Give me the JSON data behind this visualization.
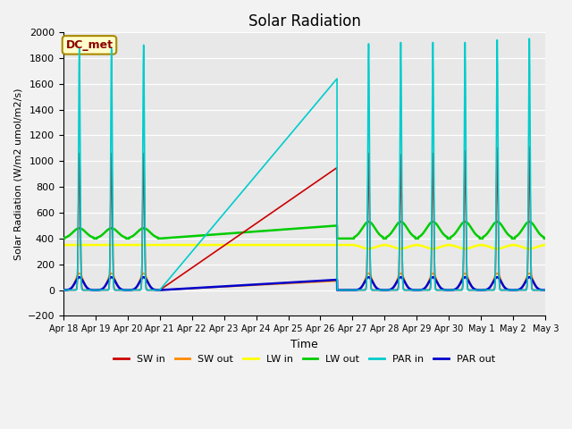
{
  "title": "Solar Radiation",
  "xlabel": "Time",
  "ylabel": "Solar Radiation (W/m2 umol/m2/s)",
  "ylim": [
    -200,
    2000
  ],
  "xlim_days": [
    0,
    15
  ],
  "x_tick_labels": [
    "Apr 18",
    "Apr 19",
    "Apr 20",
    "Apr 21",
    "Apr 22",
    "Apr 23",
    "Apr 24",
    "Apr 25",
    "Apr 26",
    "Apr 27",
    "Apr 28",
    "Apr 29",
    "Apr 30",
    "May 1",
    "May 2",
    "May 3"
  ],
  "bg_color": "#e8e8e8",
  "fig_color": "#f2f2f2",
  "grid_color": "#ffffff",
  "legend_label_box": "DC_met",
  "series": {
    "SW_in": {
      "color": "#cc0000",
      "label": "SW in"
    },
    "SW_out": {
      "color": "#ff8800",
      "label": "SW out"
    },
    "LW_in": {
      "color": "#ffff00",
      "label": "LW in"
    },
    "LW_out": {
      "color": "#00cc00",
      "label": "LW out"
    },
    "PAR_in": {
      "color": "#00cccc",
      "label": "PAR in"
    },
    "PAR_out": {
      "color": "#0000cc",
      "label": "PAR out"
    }
  }
}
